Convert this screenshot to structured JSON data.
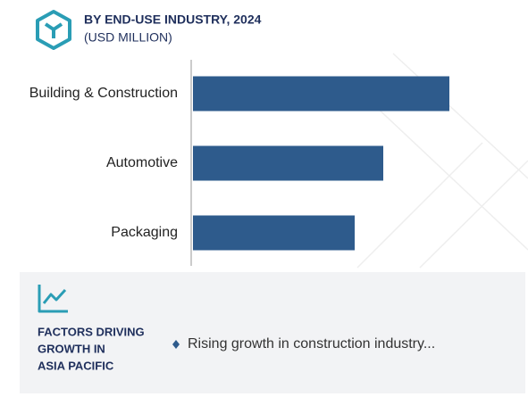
{
  "chart_data": {
    "type": "barh",
    "title": "BY END-USE INDUSTRY, 2024",
    "subtitle": "(USD MILLION)",
    "categories": [
      "Building & Construction",
      "Automotive",
      "Packaging"
    ],
    "values": [
      287,
      213,
      181
    ],
    "color": "#2e5b8c"
  },
  "panel": {
    "heading": [
      "FACTORS DRIVING",
      "GROWTH IN",
      "ASIA PACIFIC"
    ],
    "bullets": [
      "Rising growth in construction industry..."
    ]
  }
}
